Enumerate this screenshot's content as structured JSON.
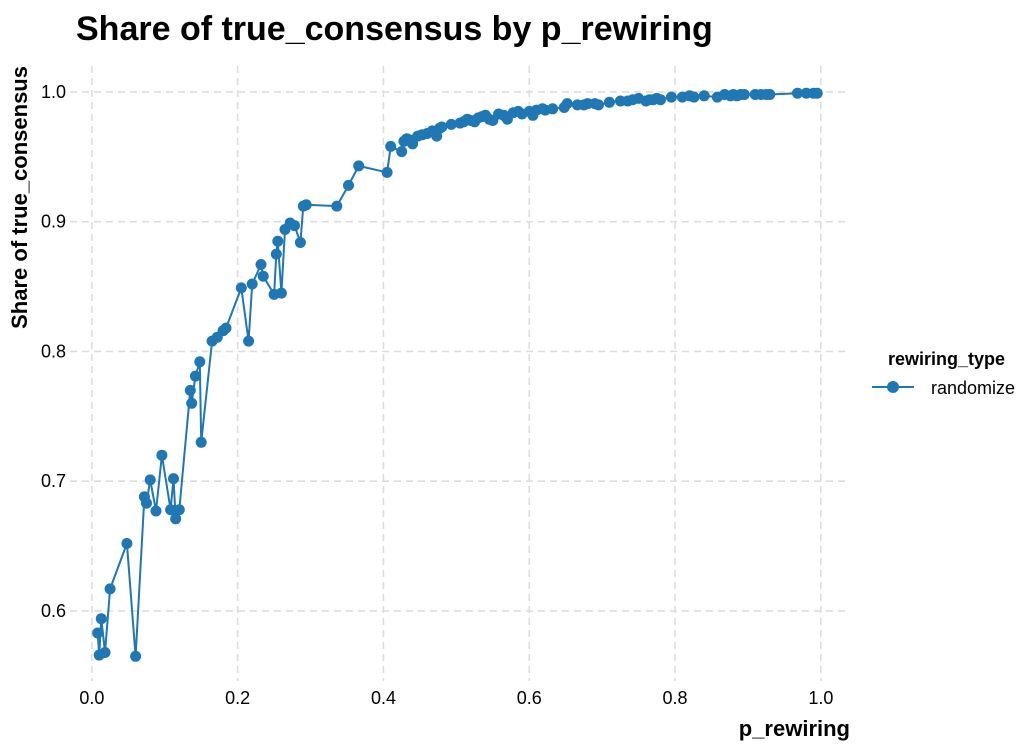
{
  "chart_data": {
    "type": "line",
    "title": "Share of true_consensus by p_rewiring",
    "xlabel": "p_rewiring",
    "ylabel": "Share of true_consensus",
    "xlim": [
      -0.03,
      1.04
    ],
    "ylim": [
      0.546,
      1.02
    ],
    "x_ticks": [
      0.0,
      0.2,
      0.4,
      0.6,
      0.8,
      1.0
    ],
    "x_tick_labels": [
      "0.0",
      "0.2",
      "0.4",
      "0.6",
      "0.8",
      "1.0"
    ],
    "y_ticks": [
      0.6,
      0.7,
      0.8,
      0.9,
      1.0
    ],
    "y_tick_labels": [
      "0.6",
      "0.7",
      "0.8",
      "0.9",
      "1.0"
    ],
    "grid": true,
    "legend": {
      "title": "rewiring_type",
      "placement": "right"
    },
    "series": [
      {
        "name": "randomize",
        "color": "#1f77b4",
        "marker": "circle",
        "x": [
          0.008,
          0.01,
          0.013,
          0.018,
          0.025,
          0.048,
          0.06,
          0.072,
          0.075,
          0.08,
          0.088,
          0.096,
          0.108,
          0.112,
          0.115,
          0.12,
          0.135,
          0.137,
          0.142,
          0.148,
          0.15,
          0.165,
          0.172,
          0.18,
          0.184,
          0.205,
          0.215,
          0.22,
          0.232,
          0.235,
          0.25,
          0.253,
          0.255,
          0.26,
          0.265,
          0.272,
          0.278,
          0.286,
          0.29,
          0.294,
          0.336,
          0.352,
          0.366,
          0.405,
          0.41,
          0.425,
          0.428,
          0.432,
          0.436,
          0.44,
          0.447,
          0.453,
          0.46,
          0.467,
          0.47,
          0.473,
          0.477,
          0.48,
          0.493,
          0.505,
          0.51,
          0.515,
          0.52,
          0.525,
          0.53,
          0.535,
          0.54,
          0.545,
          0.55,
          0.558,
          0.565,
          0.57,
          0.578,
          0.585,
          0.59,
          0.6,
          0.605,
          0.61,
          0.618,
          0.622,
          0.632,
          0.648,
          0.652,
          0.666,
          0.675,
          0.68,
          0.69,
          0.695,
          0.71,
          0.725,
          0.735,
          0.742,
          0.75,
          0.76,
          0.765,
          0.77,
          0.775,
          0.78,
          0.795,
          0.81,
          0.82,
          0.826,
          0.84,
          0.858,
          0.868,
          0.876,
          0.88,
          0.885,
          0.89,
          0.895,
          0.91,
          0.918,
          0.925,
          0.93,
          0.968,
          0.98,
          0.99,
          0.995
        ],
        "y": [
          0.583,
          0.566,
          0.594,
          0.568,
          0.617,
          0.652,
          0.565,
          0.688,
          0.683,
          0.701,
          0.677,
          0.72,
          0.678,
          0.702,
          0.671,
          0.678,
          0.77,
          0.76,
          0.781,
          0.792,
          0.73,
          0.808,
          0.811,
          0.816,
          0.818,
          0.849,
          0.808,
          0.852,
          0.867,
          0.858,
          0.844,
          0.875,
          0.885,
          0.845,
          0.894,
          0.899,
          0.897,
          0.884,
          0.912,
          0.913,
          0.912,
          0.928,
          0.943,
          0.938,
          0.958,
          0.954,
          0.962,
          0.964,
          0.963,
          0.96,
          0.966,
          0.967,
          0.968,
          0.97,
          0.969,
          0.966,
          0.972,
          0.973,
          0.975,
          0.976,
          0.977,
          0.979,
          0.978,
          0.977,
          0.98,
          0.981,
          0.982,
          0.979,
          0.978,
          0.983,
          0.982,
          0.979,
          0.984,
          0.985,
          0.983,
          0.985,
          0.982,
          0.986,
          0.987,
          0.986,
          0.987,
          0.988,
          0.991,
          0.99,
          0.99,
          0.991,
          0.991,
          0.99,
          0.992,
          0.993,
          0.993,
          0.994,
          0.995,
          0.993,
          0.994,
          0.994,
          0.995,
          0.994,
          0.996,
          0.996,
          0.997,
          0.996,
          0.997,
          0.996,
          0.998,
          0.997,
          0.998,
          0.997,
          0.998,
          0.998,
          0.998,
          0.998,
          0.998,
          0.998,
          0.999,
          0.999,
          0.999,
          0.999
        ]
      }
    ]
  }
}
